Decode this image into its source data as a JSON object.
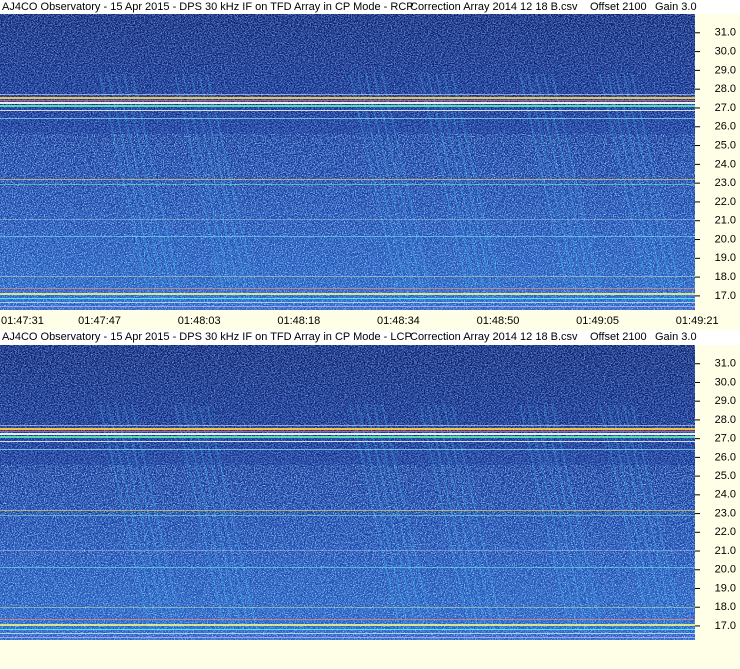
{
  "chart_data": [
    {
      "type": "spectrogram",
      "title": "AJ4CO Observatory - 15 Apr 2015 - DPS 30 kHz IF on TFD Array in CP Mode - RCP",
      "annotations": [
        "Correction Array 2014 12 18 B.csv",
        "Offset 2100",
        "Gain 3.0"
      ],
      "xticks": [
        "01:47:31",
        "01:47:47",
        "01:48:03",
        "01:48:18",
        "01:48:34",
        "01:48:50",
        "01:49:05",
        "01:49:21"
      ],
      "ylim": [
        16.25,
        32.0
      ],
      "yticks": [
        {
          "value": 17,
          "label": "17.0"
        },
        {
          "value": 18,
          "label": "18.0"
        },
        {
          "value": 19,
          "label": "19.0"
        },
        {
          "value": 20,
          "label": "20.0"
        },
        {
          "value": 21,
          "label": "21.0"
        },
        {
          "value": 22,
          "label": "22.0"
        },
        {
          "value": 23,
          "label": "23.0"
        },
        {
          "value": 24,
          "label": "24.0"
        },
        {
          "value": 25,
          "label": "25.0"
        },
        {
          "value": 26,
          "label": "26.0"
        },
        {
          "value": 27,
          "label": "27.0"
        },
        {
          "value": 28,
          "label": "28.0"
        },
        {
          "value": 29,
          "label": "29.0"
        },
        {
          "value": 30,
          "label": "30.0"
        },
        {
          "value": 31,
          "label": "31.0"
        }
      ]
    },
    {
      "type": "spectrogram",
      "title": "AJ4CO Observatory - 15 Apr 2015 - DPS 30 kHz IF on TFD Array in CP Mode - LCP",
      "annotations": [
        "Correction Array 2014 12 18 B.csv",
        "Offset 2100",
        "Gain 3.0"
      ],
      "ylim": [
        16.25,
        32.0
      ],
      "yticks": [
        {
          "value": 17,
          "label": "17.0"
        },
        {
          "value": 18,
          "label": "18.0"
        },
        {
          "value": 19,
          "label": "19.0"
        },
        {
          "value": 20,
          "label": "20.0"
        },
        {
          "value": 21,
          "label": "21.0"
        },
        {
          "value": 22,
          "label": "22.0"
        },
        {
          "value": 23,
          "label": "23.0"
        },
        {
          "value": 24,
          "label": "24.0"
        },
        {
          "value": 25,
          "label": "25.0"
        },
        {
          "value": 26,
          "label": "26.0"
        },
        {
          "value": 27,
          "label": "27.0"
        },
        {
          "value": 28,
          "label": "28.0"
        },
        {
          "value": 29,
          "label": "29.0"
        },
        {
          "value": 30,
          "label": "30.0"
        },
        {
          "value": 31,
          "label": "31.0"
        }
      ]
    }
  ]
}
